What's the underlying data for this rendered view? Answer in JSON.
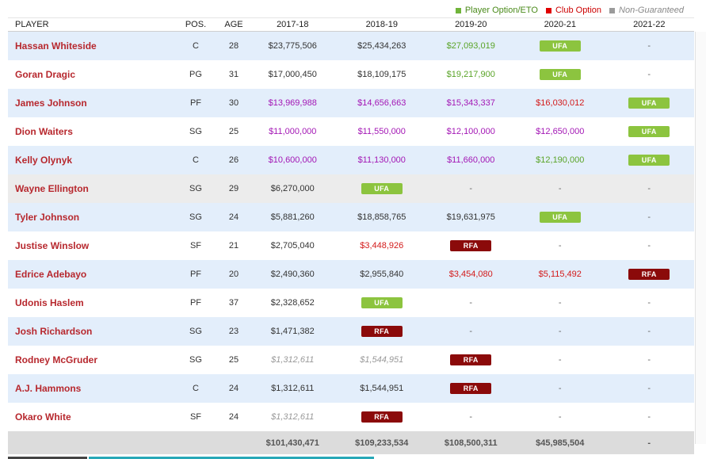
{
  "legend": {
    "player_option": "Player Option/ETO",
    "club_option": "Club Option",
    "non_guaranteed": "Non-Guaranteed",
    "colors": {
      "player_option": "#70b43a",
      "club_option": "#e00000",
      "non_guaranteed": "#9b9b9b"
    }
  },
  "headers": [
    "PLAYER",
    "POS.",
    "AGE",
    "2017-18",
    "2018-19",
    "2019-20",
    "2020-21",
    "2021-22"
  ],
  "rows": [
    {
      "name": "Hassan Whiteside",
      "pos": "C",
      "age": "28",
      "bg": "alt",
      "cells": [
        {
          "t": "$23,775,506",
          "s": ""
        },
        {
          "t": "$25,434,263",
          "s": ""
        },
        {
          "t": "$27,093,019",
          "s": "green"
        },
        {
          "t": "UFA",
          "s": "ufa"
        },
        {
          "t": "-",
          "s": "dash"
        }
      ]
    },
    {
      "name": "Goran Dragic",
      "pos": "PG",
      "age": "31",
      "bg": "",
      "cells": [
        {
          "t": "$17,000,450",
          "s": ""
        },
        {
          "t": "$18,109,175",
          "s": ""
        },
        {
          "t": "$19,217,900",
          "s": "green"
        },
        {
          "t": "UFA",
          "s": "ufa"
        },
        {
          "t": "-",
          "s": "dash"
        }
      ]
    },
    {
      "name": "James Johnson",
      "pos": "PF",
      "age": "30",
      "bg": "alt",
      "cells": [
        {
          "t": "$13,969,988",
          "s": "purple"
        },
        {
          "t": "$14,656,663",
          "s": "purple"
        },
        {
          "t": "$15,343,337",
          "s": "purple"
        },
        {
          "t": "$16,030,012",
          "s": "red"
        },
        {
          "t": "UFA",
          "s": "ufa"
        }
      ]
    },
    {
      "name": "Dion Waiters",
      "pos": "SG",
      "age": "25",
      "bg": "",
      "cells": [
        {
          "t": "$11,000,000",
          "s": "purple"
        },
        {
          "t": "$11,550,000",
          "s": "purple"
        },
        {
          "t": "$12,100,000",
          "s": "purple"
        },
        {
          "t": "$12,650,000",
          "s": "purple"
        },
        {
          "t": "UFA",
          "s": "ufa"
        }
      ]
    },
    {
      "name": "Kelly Olynyk",
      "pos": "C",
      "age": "26",
      "bg": "alt",
      "cells": [
        {
          "t": "$10,600,000",
          "s": "purple"
        },
        {
          "t": "$11,130,000",
          "s": "purple"
        },
        {
          "t": "$11,660,000",
          "s": "purple"
        },
        {
          "t": "$12,190,000",
          "s": "green"
        },
        {
          "t": "UFA",
          "s": "ufa"
        }
      ]
    },
    {
      "name": "Wayne Ellington",
      "pos": "SG",
      "age": "29",
      "bg": "gray",
      "cells": [
        {
          "t": "$6,270,000",
          "s": ""
        },
        {
          "t": "UFA",
          "s": "ufa"
        },
        {
          "t": "-",
          "s": "dash"
        },
        {
          "t": "-",
          "s": "dash"
        },
        {
          "t": "-",
          "s": "dash"
        }
      ]
    },
    {
      "name": "Tyler Johnson",
      "pos": "SG",
      "age": "24",
      "bg": "alt",
      "cells": [
        {
          "t": "$5,881,260",
          "s": ""
        },
        {
          "t": "$18,858,765",
          "s": ""
        },
        {
          "t": "$19,631,975",
          "s": ""
        },
        {
          "t": "UFA",
          "s": "ufa"
        },
        {
          "t": "-",
          "s": "dash"
        }
      ]
    },
    {
      "name": "Justise Winslow",
      "pos": "SF",
      "age": "21",
      "bg": "",
      "cells": [
        {
          "t": "$2,705,040",
          "s": ""
        },
        {
          "t": "$3,448,926",
          "s": "red"
        },
        {
          "t": "RFA",
          "s": "rfa"
        },
        {
          "t": "-",
          "s": "dash"
        },
        {
          "t": "-",
          "s": "dash"
        }
      ]
    },
    {
      "name": "Edrice Adebayo",
      "pos": "PF",
      "age": "20",
      "bg": "alt",
      "cells": [
        {
          "t": "$2,490,360",
          "s": ""
        },
        {
          "t": "$2,955,840",
          "s": ""
        },
        {
          "t": "$3,454,080",
          "s": "red"
        },
        {
          "t": "$5,115,492",
          "s": "red"
        },
        {
          "t": "RFA",
          "s": "rfa"
        }
      ]
    },
    {
      "name": "Udonis Haslem",
      "pos": "PF",
      "age": "37",
      "bg": "",
      "cells": [
        {
          "t": "$2,328,652",
          "s": ""
        },
        {
          "t": "UFA",
          "s": "ufa"
        },
        {
          "t": "-",
          "s": "dash"
        },
        {
          "t": "-",
          "s": "dash"
        },
        {
          "t": "-",
          "s": "dash"
        }
      ]
    },
    {
      "name": "Josh Richardson",
      "pos": "SG",
      "age": "23",
      "bg": "alt",
      "cells": [
        {
          "t": "$1,471,382",
          "s": ""
        },
        {
          "t": "RFA",
          "s": "rfa"
        },
        {
          "t": "-",
          "s": "dash"
        },
        {
          "t": "-",
          "s": "dash"
        },
        {
          "t": "-",
          "s": "dash"
        }
      ]
    },
    {
      "name": "Rodney McGruder",
      "pos": "SG",
      "age": "25",
      "bg": "",
      "cells": [
        {
          "t": "$1,312,611",
          "s": "italic"
        },
        {
          "t": "$1,544,951",
          "s": "italic"
        },
        {
          "t": "RFA",
          "s": "rfa"
        },
        {
          "t": "-",
          "s": "dash"
        },
        {
          "t": "-",
          "s": "dash"
        }
      ]
    },
    {
      "name": "A.J. Hammons",
      "pos": "C",
      "age": "24",
      "bg": "alt",
      "cells": [
        {
          "t": "$1,312,611",
          "s": ""
        },
        {
          "t": "$1,544,951",
          "s": ""
        },
        {
          "t": "RFA",
          "s": "rfa"
        },
        {
          "t": "-",
          "s": "dash"
        },
        {
          "t": "-",
          "s": "dash"
        }
      ]
    },
    {
      "name": "Okaro White",
      "pos": "SF",
      "age": "24",
      "bg": "",
      "cells": [
        {
          "t": "$1,312,611",
          "s": "italic"
        },
        {
          "t": "RFA",
          "s": "rfa"
        },
        {
          "t": "-",
          "s": "dash"
        },
        {
          "t": "-",
          "s": "dash"
        },
        {
          "t": "-",
          "s": "dash"
        }
      ]
    }
  ],
  "totals": [
    "$101,430,471",
    "$109,233,534",
    "$108,500,311",
    "$45,985,504",
    "-"
  ]
}
